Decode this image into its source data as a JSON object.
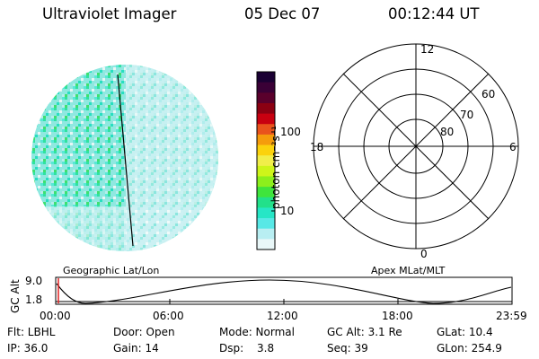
{
  "header": {
    "title": "Ultraviolet Imager",
    "date": "05 Dec 07",
    "time": "00:12:44 UT"
  },
  "colorbar": {
    "unit_label": "photon cm⁻²s⁻¹",
    "ticks": [
      "100",
      "10"
    ],
    "colors": [
      "#1a0033",
      "#3a0036",
      "#5a002c",
      "#8b0012",
      "#c80010",
      "#e9531c",
      "#f59c0c",
      "#fbd20d",
      "#f1ee4a",
      "#cef51a",
      "#8cef1c",
      "#3fe43c",
      "#22e08a",
      "#26e6c6",
      "#58e8e6",
      "#b8eef2",
      "#e9f7f8"
    ]
  },
  "polar_plot": {
    "mlt_labels": {
      "top": "12",
      "left": "18",
      "right": "6",
      "bottom": "0"
    },
    "lat_labels": [
      "60",
      "70",
      "80"
    ]
  },
  "map_labels": {
    "left": "Geographic Lat/Lon",
    "right": "Apex MLat/MLT"
  },
  "altitude_plot": {
    "axis_label": "GC Alt",
    "y_ticks": [
      "9.0",
      "1.8"
    ],
    "x_ticks": [
      "00:00",
      "06:00",
      "12:00",
      "18:00",
      "23:59"
    ]
  },
  "status": {
    "row1": {
      "flt": "Flt: LBHL",
      "door": "Door: Open",
      "mode": "Mode: Normal",
      "gc_alt": "GC Alt: 3.1 Re",
      "glat": "GLat:  10.4"
    },
    "row2": {
      "ip": "IP: 36.0",
      "gain": "Gain: 14",
      "dsp_label": "Dsp:",
      "dsp_value": "3.8",
      "seq": "Seq: 39",
      "glon": "GLon: 254.9"
    }
  }
}
